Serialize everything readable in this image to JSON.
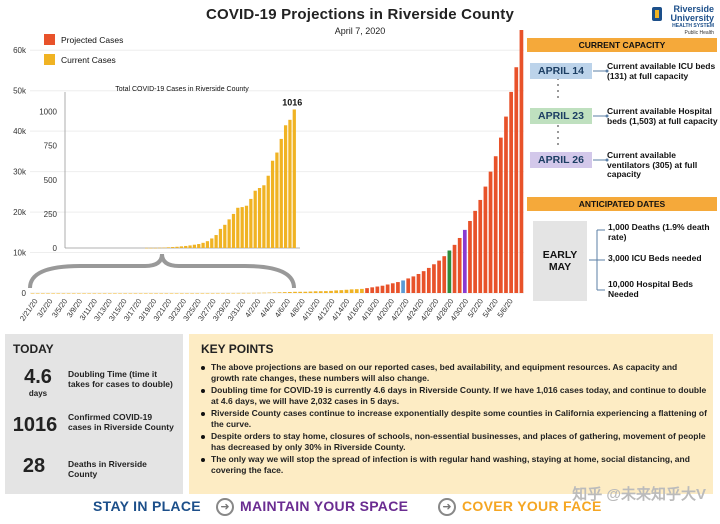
{
  "header": {
    "title": "COVID-19 Projections in Riverside County",
    "subtitle": "April 7, 2020",
    "logo_line1": "Riverside",
    "logo_line2": "University",
    "logo_line3": "HEALTH SYSTEM",
    "logo_line4": "Public Health"
  },
  "chart_data": [
    {
      "type": "bar",
      "title": "",
      "legend": [
        {
          "name": "Projected Cases",
          "color": "#e8522a"
        },
        {
          "name": "Current Cases",
          "color": "#f0b323"
        }
      ],
      "legend_position": "top-left",
      "ylim": [
        0,
        65000
      ],
      "yticks": [
        "0",
        "10k",
        "20k",
        "30k",
        "40k",
        "50k",
        "60k"
      ],
      "ytick_values": [
        0,
        10000,
        20000,
        30000,
        40000,
        50000,
        60000
      ],
      "xtick_labels": [
        "2/21/20",
        "3/2/20",
        "3/5/20",
        "3/9/20",
        "3/11/20",
        "3/13/20",
        "3/15/20",
        "3/17/20",
        "3/19/20",
        "3/21/20",
        "3/23/20",
        "3/25/20",
        "3/27/20",
        "3/29/20",
        "3/31/20",
        "4/2/20",
        "4/4/20",
        "4/6/20",
        "4/8/20",
        "4/10/20",
        "4/12/20",
        "4/14/20",
        "4/16/20",
        "4/18/20",
        "4/20/20",
        "4/22/20",
        "4/24/20",
        "4/26/20",
        "4/28/20",
        "4/30/20",
        "5/2/20",
        "5/4/20",
        "5/6/20"
      ],
      "current_values": [
        0,
        0,
        0,
        0,
        0,
        0,
        0,
        0,
        0,
        0,
        0,
        0,
        0,
        0,
        0,
        0,
        0,
        0,
        0,
        0,
        0,
        0,
        0,
        0,
        0,
        0,
        0,
        0,
        0,
        0,
        1,
        1,
        1,
        2,
        3,
        5,
        7,
        9,
        12,
        15,
        19,
        24,
        29,
        38,
        50,
        70,
        95,
        140,
        170,
        210,
        250,
        295,
        300,
        310,
        360,
        420,
        440,
        460,
        530,
        640,
        700,
        800,
        900,
        940,
        1016
      ],
      "projected_values": [
        1200,
        1400,
        1600,
        1800,
        2100,
        2400,
        2700,
        3100,
        3600,
        4100,
        4700,
        5400,
        6200,
        7100,
        8000,
        9100,
        10500,
        11900,
        13600,
        15600,
        17800,
        20300,
        23000,
        26300,
        30000,
        33800,
        38400,
        43600,
        49700,
        55800,
        65000
      ],
      "highlight_days": [
        {
          "label": "April 14",
          "color": "#5b9bd5"
        },
        {
          "label": "April 23",
          "color": "#2e8b3a"
        },
        {
          "label": "April 26",
          "color": "#8a3ad1"
        }
      ]
    },
    {
      "type": "bar",
      "title": "Total COVID-19 Cases in Riverside County",
      "ylim": [
        0,
        1100
      ],
      "yticks": [
        "0",
        "250",
        "500",
        "750",
        "1000"
      ],
      "ytick_values": [
        0,
        250,
        500,
        750,
        1000
      ],
      "values": [
        1,
        1,
        1,
        2,
        3,
        5,
        7,
        9,
        12,
        15,
        19,
        24,
        29,
        38,
        50,
        70,
        95,
        140,
        170,
        210,
        250,
        295,
        300,
        310,
        360,
        420,
        440,
        460,
        530,
        640,
        700,
        800,
        900,
        940,
        1016
      ],
      "last_label": "1016"
    }
  ],
  "capacity": {
    "heading": "CURRENT CAPACITY",
    "items": [
      {
        "date": "APRIL 14",
        "text": "Current available ICU beds (131) at full capacity",
        "color": "#bcd3ea"
      },
      {
        "date": "APRIL 23",
        "text": "Current available Hospital beds (1,503) at full capacity",
        "color": "#bfe0bf"
      },
      {
        "date": "APRIL 26",
        "text": "Current available ventilators (305) at full capacity",
        "color": "#d3c8ea"
      }
    ]
  },
  "anticipated": {
    "heading": "ANTICIPATED DATES",
    "label": "EARLY MAY",
    "items": [
      "1,000 Deaths (1.9% death rate)",
      "3,000 ICU Beds needed",
      "10,000 Hospital Beds Needed"
    ]
  },
  "today": {
    "heading": "TODAY",
    "stats": [
      {
        "value": "4.6",
        "unit": "days",
        "label": "Doubling Time (time it takes for cases to double)"
      },
      {
        "value": "1016",
        "unit": "",
        "label": "Confirmed COVID-19 cases in Riverside County"
      },
      {
        "value": "28",
        "unit": "",
        "label": "Deaths in Riverside County"
      }
    ]
  },
  "key_points": {
    "heading": "KEY POINTS",
    "items": [
      "The above projections are based on our reported cases, bed availability, and equipment resources. As capacity and growth rate changes, these numbers will also change.",
      "Doubling time for COVID-19 is currently 4.6 days in Riverside County. If we have 1,016 cases today, and continue to double at 4.6 days, we will have 2,032 cases in 5 days.",
      "Riverside County cases continue to increase exponentially despite some counties in California experiencing a flattening of the curve.",
      "Despite orders to stay home, closures of schools, non-essential businesses, and places of gathering, movement of people has decreased by only 30% in Riverside County.",
      "The only way we will stop the spread of infection is with regular hand washing, staying at home, social distancing, and covering the face."
    ]
  },
  "banner": {
    "a": "STAY IN PLACE",
    "b": "MAINTAIN YOUR SPACE",
    "c": "COVER YOUR FACE",
    "a_color": "#1c4f8a",
    "b_color": "#6a2c91",
    "c_color": "#f5a623"
  },
  "watermark": "知乎 @未来知乎大V"
}
